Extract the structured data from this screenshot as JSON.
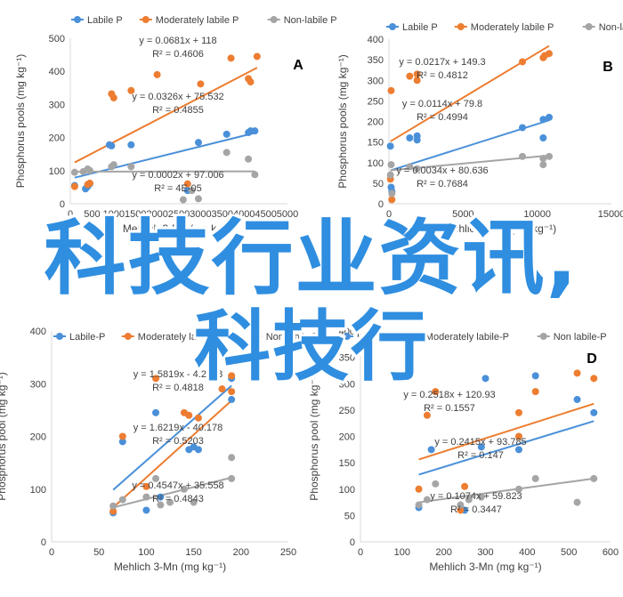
{
  "colors": {
    "labile": "#4a90d9",
    "moderately": "#ed7d31",
    "nonlabile": "#a5a5a5",
    "axis": "#d9d9d9",
    "text": "#404040"
  },
  "overlay": {
    "line1": "科技行业资讯,",
    "line2": "科技行"
  },
  "chart_data": [
    {
      "type": "scatter",
      "panel": "A",
      "xlabel": "Mehlich 3-Mn (mg kg⁻¹)",
      "ylabel": "Phosphorus pools (mg kg⁻¹)",
      "xlim": [
        0,
        5000
      ],
      "ylim": [
        0,
        500
      ],
      "xticks": [
        "0",
        "500",
        "1000",
        "1500",
        "2000",
        "2500",
        "3000",
        "3500",
        "4000",
        "4500",
        "5000"
      ],
      "yticks": [
        "0",
        "100",
        "200",
        "300",
        "400",
        "500"
      ],
      "legend": [
        "Labile P",
        "Moderately labile P",
        "Non-labile P"
      ],
      "series": [
        {
          "name": "Labile P",
          "trend": {
            "slope": 0.0326,
            "intercept": 75.532
          },
          "points": [
            [
              100,
              55
            ],
            [
              350,
              45
            ],
            [
              400,
              52
            ],
            [
              450,
              60
            ],
            [
              900,
              178
            ],
            [
              950,
              175
            ],
            [
              1400,
              178
            ],
            [
              2950,
              185
            ],
            [
              3600,
              210
            ],
            [
              4100,
              215
            ],
            [
              4150,
              220
            ],
            [
              4250,
              220
            ],
            [
              2700,
              40
            ]
          ]
        },
        {
          "name": "Moderately labile P",
          "trend": {
            "slope": 0.0681,
            "intercept": 118
          },
          "points": [
            [
              100,
              52
            ],
            [
              400,
              58
            ],
            [
              450,
              62
            ],
            [
              950,
              332
            ],
            [
              1000,
              320
            ],
            [
              1400,
              342
            ],
            [
              2000,
              390
            ],
            [
              2700,
              60
            ],
            [
              3000,
              362
            ],
            [
              3700,
              440
            ],
            [
              4100,
              378
            ],
            [
              4150,
              368
            ],
            [
              4300,
              445
            ]
          ]
        },
        {
          "name": "Non-labile P",
          "trend": {
            "slope": 0.0002,
            "intercept": 97.006
          },
          "points": [
            [
              100,
              95
            ],
            [
              300,
              97
            ],
            [
              400,
              105
            ],
            [
              450,
              100
            ],
            [
              950,
              112
            ],
            [
              1000,
              118
            ],
            [
              1400,
              112
            ],
            [
              2600,
              12
            ],
            [
              2800,
              40
            ],
            [
              2950,
              15
            ],
            [
              3600,
              155
            ],
            [
              4100,
              135
            ],
            [
              4250,
              88
            ]
          ]
        }
      ],
      "equations": [
        {
          "text": "y = 0.0681x + 118",
          "r2": "R² = 0.4606"
        },
        {
          "text": "y = 0.0326x + 75.532",
          "r2": "R² = 0.4855"
        },
        {
          "text": "y = 0.0002x + 97.006",
          "r2": "R² = 4E-05"
        }
      ]
    },
    {
      "type": "scatter",
      "panel": "B",
      "xlabel": "Mehlich 3-Mn (mg kg⁻¹)",
      "ylabel": "Phosphorus pools (mg kg⁻¹)",
      "xlim": [
        0,
        15000
      ],
      "ylim": [
        0,
        400
      ],
      "xticks": [
        "0",
        "5000",
        "10000",
        "15000"
      ],
      "yticks": [
        "0",
        "50",
        "100",
        "150",
        "200",
        "250",
        "300",
        "350",
        "400"
      ],
      "legend": [
        "Labile P",
        "Moderately labile P",
        "Non-labile P"
      ],
      "series": [
        {
          "name": "Labile P",
          "trend": {
            "slope": 0.0114,
            "intercept": 79.8
          },
          "points": [
            [
              100,
              140
            ],
            [
              150,
              40
            ],
            [
              200,
              30
            ],
            [
              1400,
              160
            ],
            [
              1900,
              165
            ],
            [
              1900,
              155
            ],
            [
              9000,
              185
            ],
            [
              10400,
              160
            ],
            [
              10400,
              205
            ],
            [
              10800,
              210
            ]
          ]
        },
        {
          "name": "Moderately labile P",
          "trend": {
            "slope": 0.0217,
            "intercept": 149.3
          },
          "points": [
            [
              100,
              60
            ],
            [
              150,
              275
            ],
            [
              200,
              10
            ],
            [
              1400,
              310
            ],
            [
              1900,
              315
            ],
            [
              1900,
              300
            ],
            [
              9000,
              345
            ],
            [
              10400,
              355
            ],
            [
              10500,
              360
            ],
            [
              10800,
              365
            ]
          ]
        },
        {
          "name": "Non-labile P",
          "trend": {
            "slope": 0.0034,
            "intercept": 80.636
          },
          "points": [
            [
              100,
              70
            ],
            [
              150,
              95
            ],
            [
              200,
              25
            ],
            [
              1400,
              90
            ],
            [
              1900,
              85
            ],
            [
              9000,
              115
            ],
            [
              10400,
              95
            ],
            [
              10400,
              110
            ],
            [
              10800,
              115
            ]
          ]
        }
      ],
      "equations": [
        {
          "text": "y = 0.0217x + 149.3",
          "r2": "R² = 0.4812"
        },
        {
          "text": "y = 0.0114x + 79.8",
          "r2": "R² = 0.4994"
        },
        {
          "text": "y = 0.0034x + 80.636",
          "r2": "R² = 0.7684"
        }
      ]
    },
    {
      "type": "scatter",
      "panel": "C",
      "xlabel": "Mehlich 3-Mn (mg kg⁻¹)",
      "ylabel": "Phosphorus pool (mg kg⁻¹)",
      "xlim": [
        0,
        250
      ],
      "ylim": [
        0,
        400
      ],
      "xticks": [
        "0",
        "50",
        "100",
        "150",
        "200",
        "250"
      ],
      "yticks": [
        "0",
        "100",
        "200",
        "300",
        "400"
      ],
      "legend": [
        "Labile-P",
        "Moderately labile P",
        "Non labile P"
      ],
      "series": [
        {
          "name": "Labile-P",
          "trend": {
            "slope": 1.5819,
            "intercept": -4.2568
          },
          "points": [
            [
              65,
              55
            ],
            [
              75,
              190
            ],
            [
              100,
              60
            ],
            [
              110,
              245
            ],
            [
              115,
              85
            ],
            [
              145,
              175
            ],
            [
              150,
              180
            ],
            [
              155,
              175
            ],
            [
              190,
              310
            ],
            [
              190,
              270
            ]
          ]
        },
        {
          "name": "Moderately labile P",
          "trend": {
            "slope": 1.6219,
            "intercept": -40.178
          },
          "points": [
            [
              65,
              58
            ],
            [
              75,
              200
            ],
            [
              100,
              105
            ],
            [
              110,
              310
            ],
            [
              140,
              245
            ],
            [
              145,
              240
            ],
            [
              155,
              235
            ],
            [
              180,
              290
            ],
            [
              190,
              315
            ],
            [
              190,
              285
            ]
          ]
        },
        {
          "name": "Non labile P",
          "trend": {
            "slope": 0.4547,
            "intercept": 35.558
          },
          "points": [
            [
              65,
              68
            ],
            [
              75,
              80
            ],
            [
              100,
              85
            ],
            [
              110,
              120
            ],
            [
              115,
              70
            ],
            [
              125,
              75
            ],
            [
              140,
              100
            ],
            [
              150,
              75
            ],
            [
              190,
              160
            ],
            [
              190,
              120
            ]
          ]
        }
      ],
      "equations": [
        {
          "text": "y = 1.5819x - 4.2568",
          "r2": "R² = 0.4818"
        },
        {
          "text": "y = 1.6219x - 40.178",
          "r2": "R² = 0.5203"
        },
        {
          "text": "y = 0.4547x + 35.558",
          "r2": "R² = 0.4843"
        }
      ]
    },
    {
      "type": "scatter",
      "panel": "D",
      "xlabel": "Mehlich 3-Mn (mg kg⁻¹)",
      "ylabel": "Phosphorus pool (mg kg⁻¹)",
      "xlim": [
        0,
        600
      ],
      "ylim": [
        0,
        400
      ],
      "xticks": [
        "0",
        "100",
        "200",
        "300",
        "400",
        "500",
        "600"
      ],
      "yticks": [
        "0",
        "50",
        "100",
        "150",
        "200",
        "250",
        "300",
        "350",
        "400"
      ],
      "legend": [
        "Labile-P",
        "Moderately labile-P",
        "Non labile-P"
      ],
      "series": [
        {
          "name": "Labile-P",
          "trend": {
            "slope": 0.2415,
            "intercept": 93.785
          },
          "points": [
            [
              140,
              65
            ],
            [
              170,
              175
            ],
            [
              250,
              60
            ],
            [
              290,
              180
            ],
            [
              380,
              175
            ],
            [
              420,
              315
            ],
            [
              520,
              270
            ],
            [
              560,
              245
            ],
            [
              300,
              310
            ]
          ]
        },
        {
          "name": "Moderately labile-P",
          "trend": {
            "slope": 0.2518,
            "intercept": 120.93
          },
          "points": [
            [
              140,
              100
            ],
            [
              160,
              240
            ],
            [
              180,
              285
            ],
            [
              250,
              105
            ],
            [
              380,
              245
            ],
            [
              380,
              200
            ],
            [
              420,
              285
            ],
            [
              520,
              320
            ],
            [
              560,
              310
            ],
            [
              240,
              60
            ]
          ]
        },
        {
          "name": "Non labile-P",
          "trend": {
            "slope": 0.1074,
            "intercept": 59.823
          },
          "points": [
            [
              140,
              70
            ],
            [
              160,
              80
            ],
            [
              180,
              110
            ],
            [
              240,
              70
            ],
            [
              260,
              80
            ],
            [
              290,
              85
            ],
            [
              380,
              100
            ],
            [
              420,
              120
            ],
            [
              520,
              75
            ],
            [
              560,
              120
            ]
          ]
        }
      ],
      "equations": [
        {
          "text": "y = 0.2518x + 120.93",
          "r2": "R² = 0.1557"
        },
        {
          "text": "y = 0.2415x + 93.785",
          "r2": "R² = 0.147"
        },
        {
          "text": "y = 0.1074x + 59.823",
          "r2": "R² = 0.3447"
        }
      ]
    }
  ]
}
